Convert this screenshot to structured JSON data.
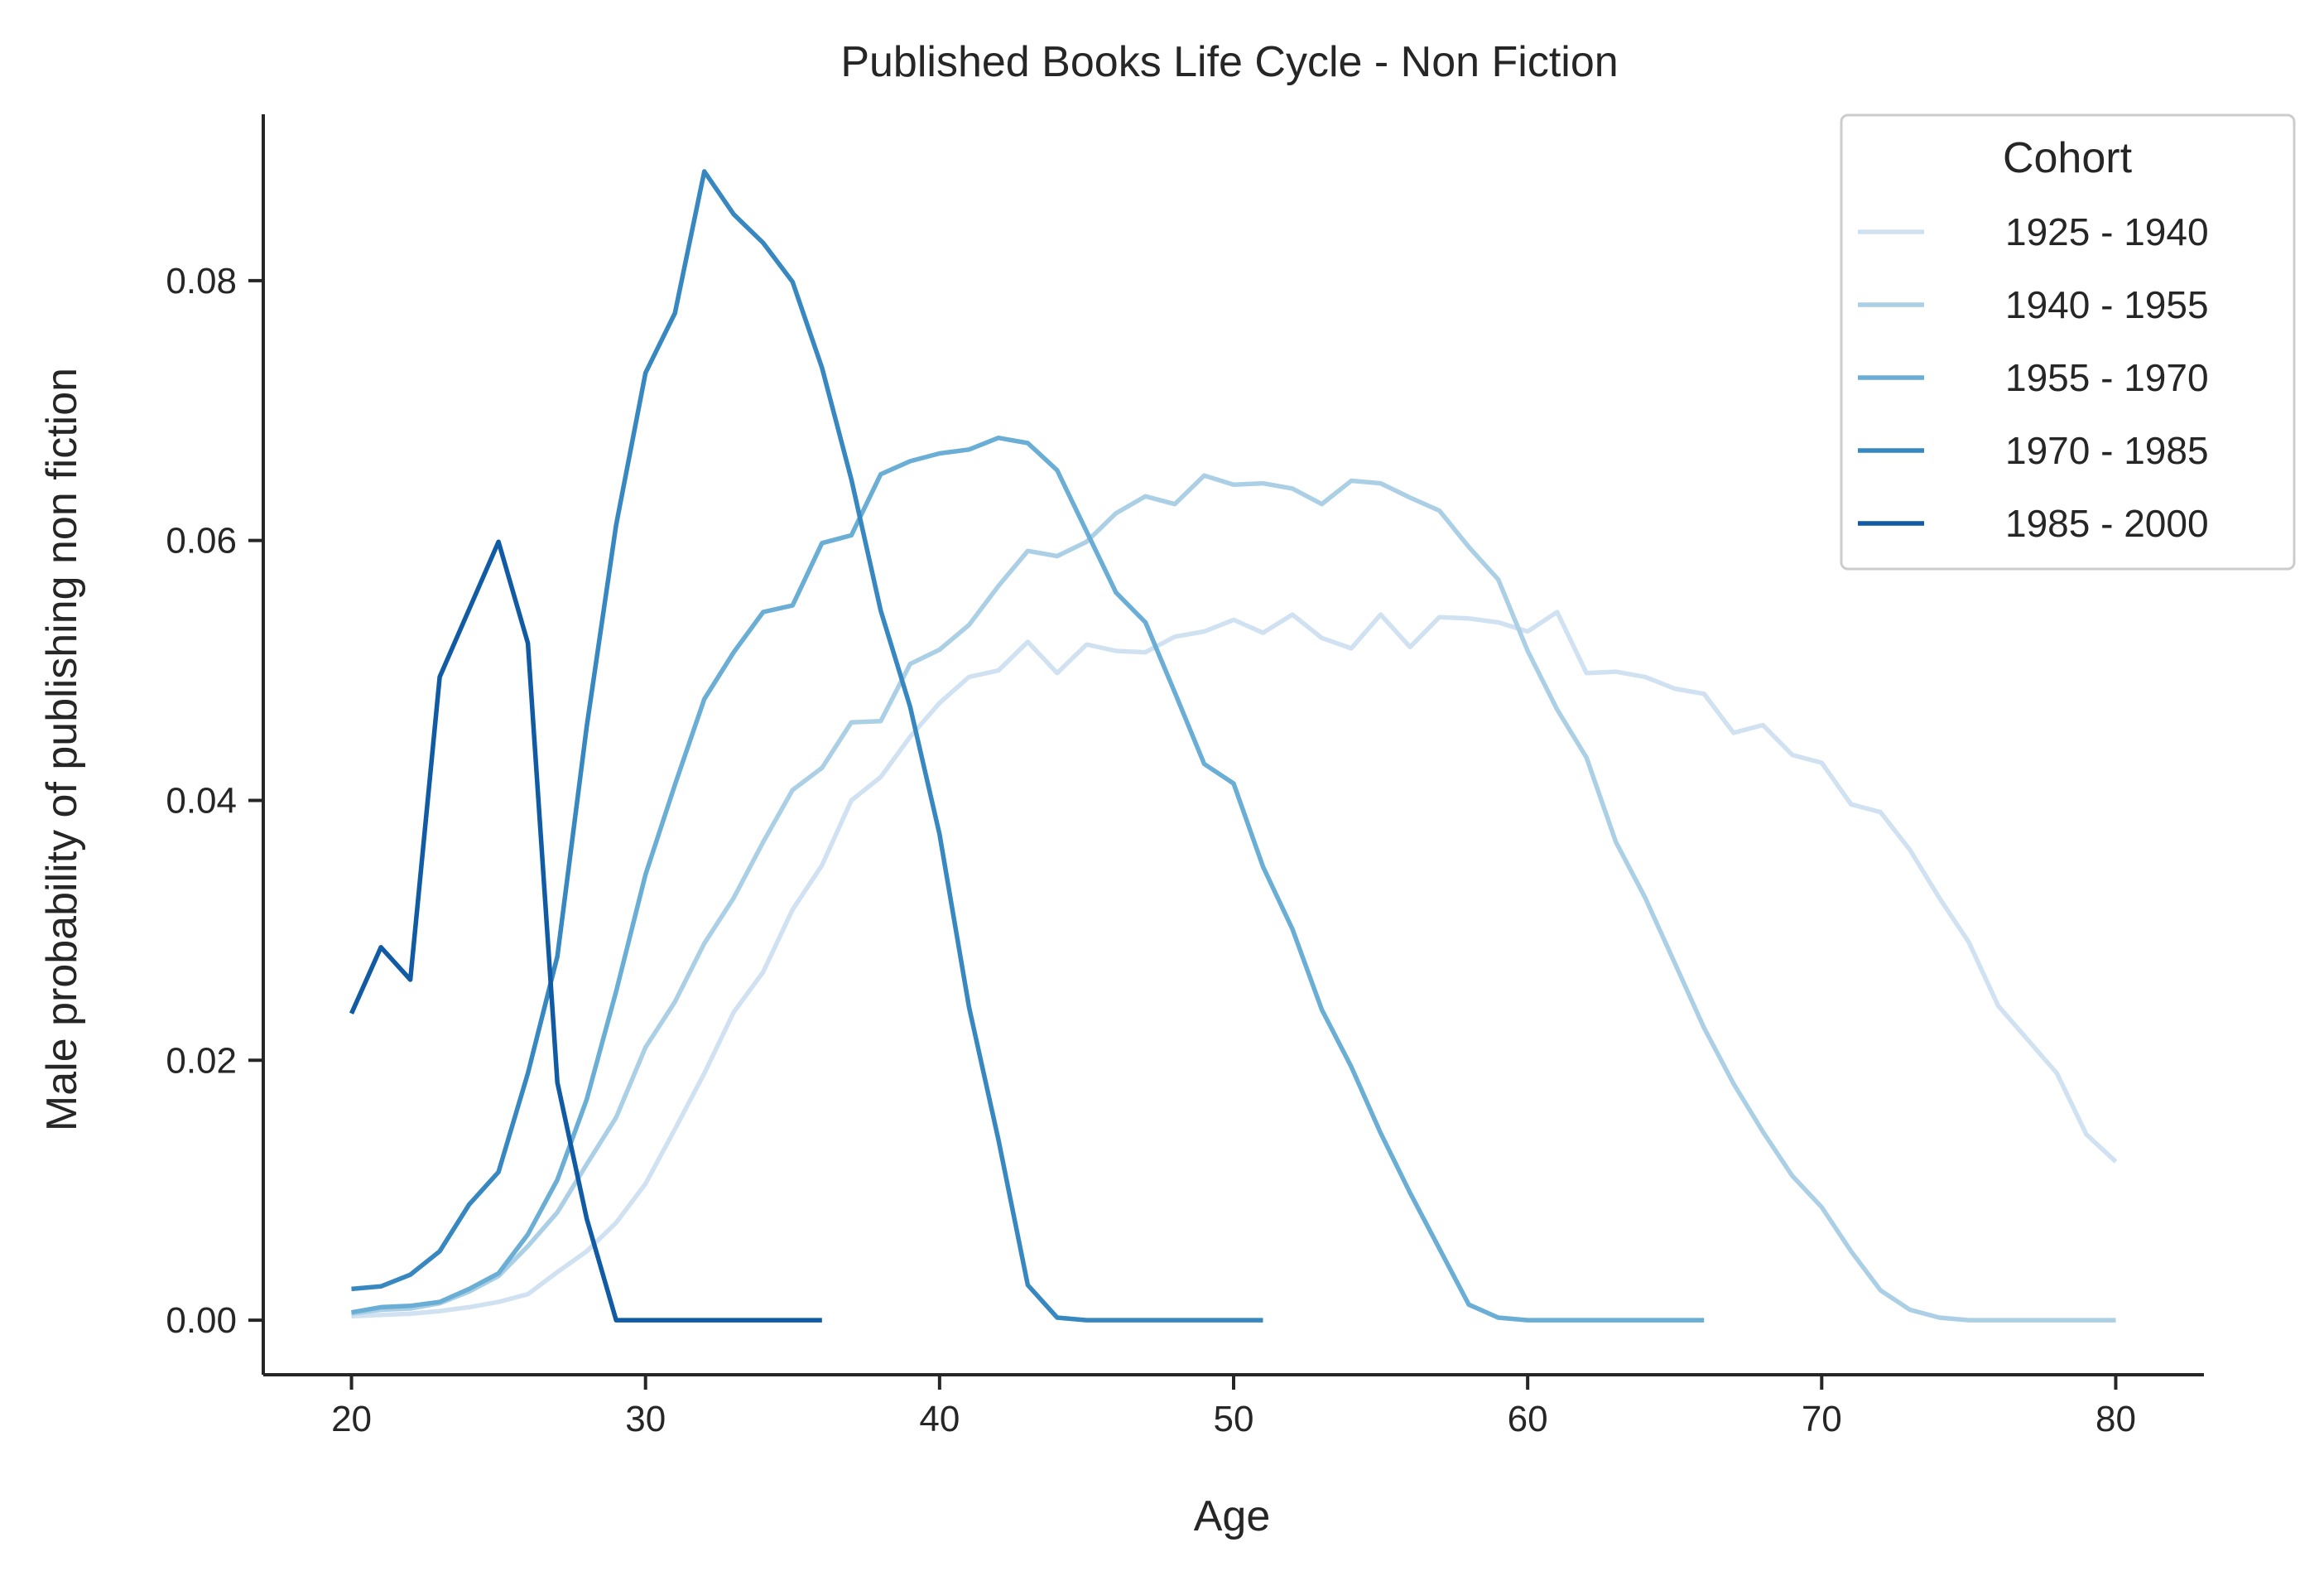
{
  "chart_data": {
    "type": "line",
    "title": "Published Books Life Cycle - Non Fiction",
    "xlabel": "Age",
    "ylabel": "Male probability of publishing non fiction",
    "xlim": [
      17,
      83
    ],
    "ylim": [
      -0.0042,
      0.0928
    ],
    "xticks": [
      "20",
      "30",
      "40",
      "50",
      "60",
      "70",
      "80"
    ],
    "yticks": [
      "0.00",
      "0.02",
      "0.04",
      "0.06",
      "0.08"
    ],
    "grid": false,
    "legend": {
      "title": "Cohort",
      "position": "top-right"
    },
    "series": [
      {
        "name": "1925 - 1940",
        "color": "#d0e1f2",
        "x": [
          20,
          21,
          22,
          23,
          24,
          25,
          26,
          27,
          28,
          29,
          30,
          31,
          32,
          33,
          34,
          35,
          36,
          37,
          38,
          39,
          40,
          41,
          42,
          43,
          44,
          45,
          46,
          47,
          48,
          49,
          50,
          51,
          52,
          53,
          54,
          55,
          56,
          57,
          58,
          59,
          60,
          61,
          62,
          63,
          64,
          65,
          66,
          67,
          68,
          69,
          70,
          71,
          72,
          73,
          74,
          75,
          76,
          77,
          78,
          79,
          80
        ],
        "y": [
          0.0003,
          0.0004,
          0.0005,
          0.0007,
          0.001,
          0.0014,
          0.002,
          0.0037,
          0.0053,
          0.0075,
          0.0105,
          0.0147,
          0.019,
          0.0237,
          0.0268,
          0.0316,
          0.035,
          0.04,
          0.0418,
          0.0449,
          0.0475,
          0.0495,
          0.05,
          0.0522,
          0.0498,
          0.052,
          0.0515,
          0.0514,
          0.0526,
          0.053,
          0.0539,
          0.0529,
          0.0543,
          0.0525,
          0.0517,
          0.0543,
          0.0518,
          0.0541,
          0.054,
          0.0537,
          0.053,
          0.0545,
          0.0498,
          0.0499,
          0.0495,
          0.0486,
          0.0482,
          0.0452,
          0.0458,
          0.0435,
          0.0429,
          0.0397,
          0.0391,
          0.0362,
          0.0325,
          0.0291,
          0.0242,
          0.0216,
          0.019,
          0.0143,
          0.0122
        ]
      },
      {
        "name": "1940 - 1955",
        "color": "#abd0e6",
        "x": [
          20,
          21,
          22,
          23,
          24,
          25,
          26,
          27,
          28,
          29,
          30,
          31,
          32,
          33,
          34,
          35,
          36,
          37,
          38,
          39,
          40,
          41,
          42,
          43,
          44,
          45,
          46,
          47,
          48,
          49,
          50,
          51,
          52,
          53,
          54,
          55,
          56,
          57,
          58,
          59,
          60,
          61,
          62,
          63,
          64,
          65,
          66,
          67,
          68,
          69,
          70,
          71,
          72,
          73,
          74,
          75,
          76,
          77,
          78,
          79,
          80
        ],
        "y": [
          0.0005,
          0.0008,
          0.0009,
          0.0013,
          0.0022,
          0.0034,
          0.0057,
          0.0083,
          0.012,
          0.0156,
          0.021,
          0.0245,
          0.029,
          0.0325,
          0.0368,
          0.0408,
          0.0425,
          0.046,
          0.0461,
          0.0505,
          0.0516,
          0.0535,
          0.0565,
          0.0592,
          0.0588,
          0.0599,
          0.0621,
          0.0634,
          0.0628,
          0.065,
          0.0643,
          0.0644,
          0.064,
          0.0628,
          0.0646,
          0.0644,
          0.0633,
          0.0623,
          0.0595,
          0.057,
          0.0515,
          0.047,
          0.0433,
          0.0368,
          0.0325,
          0.0275,
          0.0225,
          0.0182,
          0.0145,
          0.0111,
          0.0087,
          0.0053,
          0.0023,
          0.0008,
          0.0002,
          0.0,
          0.0,
          0.0,
          0.0,
          0.0,
          0.0
        ]
      },
      {
        "name": "1955 - 1970",
        "color": "#6aaed6",
        "x": [
          20,
          21,
          22,
          23,
          24,
          25,
          26,
          27,
          28,
          29,
          30,
          31,
          32,
          33,
          34,
          35,
          36,
          37,
          38,
          39,
          40,
          41,
          42,
          43,
          44,
          45,
          46,
          47,
          48,
          49,
          50,
          51,
          52,
          53,
          54,
          55,
          56,
          57,
          58,
          59,
          60,
          61,
          62,
          63,
          64,
          65,
          66
        ],
        "y": [
          0.0006,
          0.001,
          0.0011,
          0.0014,
          0.0024,
          0.0036,
          0.0066,
          0.0108,
          0.017,
          0.0253,
          0.0343,
          0.0412,
          0.0478,
          0.0514,
          0.0545,
          0.055,
          0.0598,
          0.0604,
          0.0651,
          0.0661,
          0.0667,
          0.067,
          0.0679,
          0.0675,
          0.0654,
          0.0607,
          0.056,
          0.0537,
          0.0483,
          0.0428,
          0.0413,
          0.0349,
          0.0301,
          0.0239,
          0.0195,
          0.0144,
          0.0098,
          0.0055,
          0.0012,
          0.0002,
          0.0,
          0.0,
          0.0,
          0.0,
          0.0,
          0.0,
          0.0
        ]
      },
      {
        "name": "1970 - 1985",
        "color": "#3787c0",
        "x": [
          20,
          21,
          22,
          23,
          24,
          25,
          26,
          27,
          28,
          29,
          30,
          31,
          32,
          33,
          34,
          35,
          36,
          37,
          38,
          39,
          40,
          41,
          42,
          43,
          44,
          45,
          46,
          47,
          48,
          49,
          50,
          51
        ],
        "y": [
          0.0024,
          0.0026,
          0.0035,
          0.0053,
          0.0089,
          0.0114,
          0.019,
          0.028,
          0.0457,
          0.0612,
          0.0729,
          0.0775,
          0.0884,
          0.0851,
          0.0829,
          0.0799,
          0.0733,
          0.0647,
          0.0546,
          0.0472,
          0.0374,
          0.0241,
          0.0139,
          0.0027,
          0.0002,
          0.0,
          0.0,
          0.0,
          0.0,
          0.0,
          0.0,
          0.0
        ]
      },
      {
        "name": "1985 - 2000",
        "color": "#105ba4",
        "x": [
          20,
          21,
          22,
          23,
          24,
          25,
          26,
          27,
          28,
          29,
          30,
          31,
          32,
          33,
          34,
          35,
          36
        ],
        "y": [
          0.0236,
          0.0287,
          0.0262,
          0.0495,
          0.0547,
          0.0599,
          0.0521,
          0.0183,
          0.0078,
          0.0,
          0.0,
          0.0,
          0.0,
          0.0,
          0.0,
          0.0,
          0.0
        ]
      }
    ]
  }
}
